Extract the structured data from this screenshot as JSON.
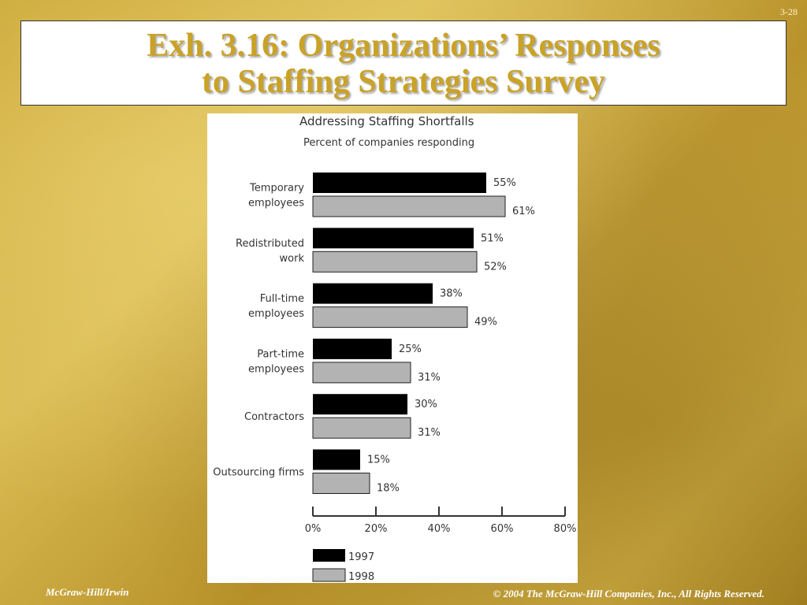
{
  "slide_number": "3-28",
  "title": {
    "line1": "Exh. 3.16:  Organizations’ Responses",
    "line2": "to Staffing Strategies Survey"
  },
  "colors": {
    "title_gold": "#c9a227",
    "series_1997": "#000000",
    "series_1998": "#b3b3b3"
  },
  "chart_data": {
    "type": "bar",
    "orientation": "horizontal",
    "title": "Addressing Staffing Shortfalls",
    "subtitle": "Percent of companies responding",
    "categories": [
      [
        "Temporary",
        "employees"
      ],
      [
        "Redistributed",
        "work"
      ],
      [
        "Full-time",
        "employees"
      ],
      [
        "Part-time",
        "employees"
      ],
      [
        "Contractors"
      ],
      [
        "Outsourcing firms"
      ]
    ],
    "series": [
      {
        "name": "1997",
        "values": [
          55,
          51,
          38,
          25,
          30,
          15
        ]
      },
      {
        "name": "1998",
        "values": [
          61,
          52,
          49,
          31,
          31,
          18
        ]
      }
    ],
    "value_suffix": "%",
    "xlim": [
      0,
      80
    ],
    "xticks": [
      "0%",
      "20%",
      "40%",
      "60%",
      "80%"
    ],
    "grid": false,
    "legend_position": "bottom-left"
  },
  "footer": {
    "left": "McGraw-Hill/Irwin",
    "right": "© 2004 The McGraw-Hill Companies, Inc., All Rights Reserved."
  }
}
